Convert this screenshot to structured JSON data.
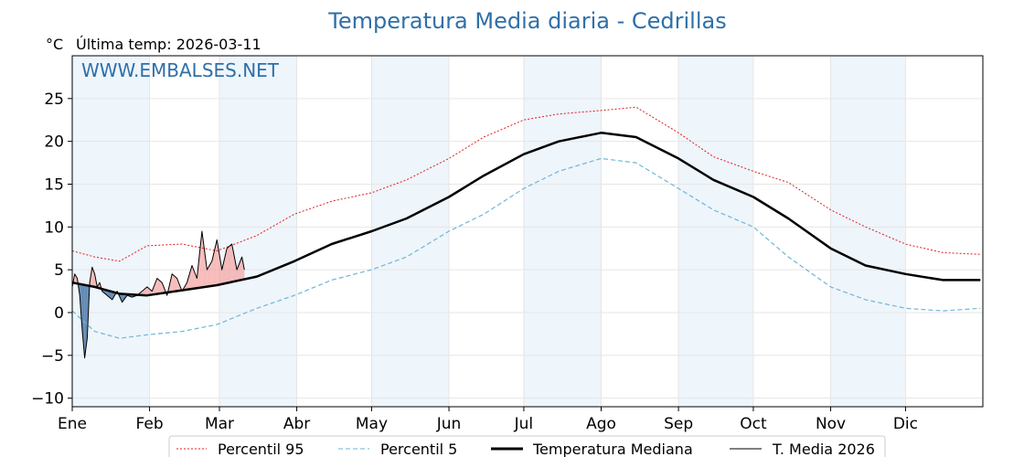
{
  "chart_data": {
    "type": "line",
    "title": "Temperatura Media diaria - Cedrillas",
    "unit_label": "°C",
    "last_temp_label": "Última temp: 2026-03-11",
    "watermark": "WWW.EMBALSES.NET",
    "x_tick_labels": [
      "Ene",
      "Feb",
      "Mar",
      "Abr",
      "May",
      "Jun",
      "Jul",
      "Ago",
      "Sep",
      "Oct",
      "Nov",
      "Dic"
    ],
    "y_ticks": [
      -10,
      -5,
      0,
      5,
      10,
      15,
      20,
      25
    ],
    "ylim": [
      -11,
      30
    ],
    "xlim_days": [
      1,
      366
    ],
    "grid": true,
    "legend_position": "bottom",
    "colors": {
      "p95": "#e41a1c",
      "p5": "#6fb6d6",
      "median": "#000000",
      "current": "#000000",
      "above": "#f4a6a6",
      "below": "#4a78a8",
      "shade": "#eef5fb"
    },
    "series": [
      {
        "name": "Percentil 95",
        "style": "dotted-red",
        "points": [
          [
            1,
            7.2
          ],
          [
            10,
            6.5
          ],
          [
            20,
            6.0
          ],
          [
            31,
            7.8
          ],
          [
            45,
            8.0
          ],
          [
            59,
            7.2
          ],
          [
            75,
            9.0
          ],
          [
            90,
            11.5
          ],
          [
            105,
            13.0
          ],
          [
            121,
            14.0
          ],
          [
            135,
            15.5
          ],
          [
            152,
            18.0
          ],
          [
            166,
            20.5
          ],
          [
            182,
            22.5
          ],
          [
            196,
            23.2
          ],
          [
            213,
            23.6
          ],
          [
            227,
            24.0
          ],
          [
            244,
            21.0
          ],
          [
            258,
            18.2
          ],
          [
            274,
            16.5
          ],
          [
            288,
            15.2
          ],
          [
            305,
            12.0
          ],
          [
            319,
            10.0
          ],
          [
            335,
            8.0
          ],
          [
            350,
            7.0
          ],
          [
            365,
            6.8
          ]
        ]
      },
      {
        "name": "Percentil 5",
        "style": "dashed-lightblue",
        "points": [
          [
            1,
            0.2
          ],
          [
            10,
            -2.2
          ],
          [
            20,
            -3.0
          ],
          [
            31,
            -2.6
          ],
          [
            45,
            -2.2
          ],
          [
            59,
            -1.4
          ],
          [
            75,
            0.5
          ],
          [
            90,
            2.0
          ],
          [
            105,
            3.8
          ],
          [
            121,
            5.0
          ],
          [
            135,
            6.5
          ],
          [
            152,
            9.5
          ],
          [
            166,
            11.5
          ],
          [
            182,
            14.5
          ],
          [
            196,
            16.5
          ],
          [
            213,
            18.0
          ],
          [
            227,
            17.5
          ],
          [
            244,
            14.5
          ],
          [
            258,
            12.0
          ],
          [
            274,
            10.0
          ],
          [
            288,
            6.5
          ],
          [
            305,
            3.0
          ],
          [
            319,
            1.5
          ],
          [
            335,
            0.5
          ],
          [
            350,
            0.2
          ],
          [
            365,
            0.5
          ]
        ]
      },
      {
        "name": "Temperatura Mediana",
        "style": "thick-black",
        "points": [
          [
            1,
            3.5
          ],
          [
            10,
            3.0
          ],
          [
            20,
            2.2
          ],
          [
            31,
            2.0
          ],
          [
            45,
            2.6
          ],
          [
            59,
            3.2
          ],
          [
            75,
            4.2
          ],
          [
            90,
            6.0
          ],
          [
            105,
            8.0
          ],
          [
            121,
            9.5
          ],
          [
            135,
            11.0
          ],
          [
            152,
            13.5
          ],
          [
            166,
            16.0
          ],
          [
            182,
            18.5
          ],
          [
            196,
            20.0
          ],
          [
            213,
            21.0
          ],
          [
            227,
            20.5
          ],
          [
            244,
            18.0
          ],
          [
            258,
            15.5
          ],
          [
            274,
            13.5
          ],
          [
            288,
            11.0
          ],
          [
            305,
            7.5
          ],
          [
            319,
            5.5
          ],
          [
            335,
            4.5
          ],
          [
            350,
            3.8
          ],
          [
            365,
            3.8
          ]
        ]
      },
      {
        "name": "T. Media 2026",
        "style": "thin-black",
        "points": [
          [
            1,
            3.0
          ],
          [
            2,
            4.5
          ],
          [
            3,
            4.0
          ],
          [
            4,
            2.0
          ],
          [
            5,
            -2.0
          ],
          [
            6,
            -5.3
          ],
          [
            7,
            -3.0
          ],
          [
            8,
            3.5
          ],
          [
            9,
            5.3
          ],
          [
            10,
            4.5
          ],
          [
            11,
            3.0
          ],
          [
            12,
            3.5
          ],
          [
            13,
            2.5
          ],
          [
            15,
            2.0
          ],
          [
            17,
            1.5
          ],
          [
            19,
            2.5
          ],
          [
            21,
            1.2
          ],
          [
            23,
            2.0
          ],
          [
            25,
            1.8
          ],
          [
            27,
            2.0
          ],
          [
            29,
            2.5
          ],
          [
            31,
            3.0
          ],
          [
            33,
            2.5
          ],
          [
            35,
            4.0
          ],
          [
            37,
            3.5
          ],
          [
            39,
            2.0
          ],
          [
            41,
            4.5
          ],
          [
            43,
            4.0
          ],
          [
            45,
            2.5
          ],
          [
            47,
            3.5
          ],
          [
            49,
            5.5
          ],
          [
            51,
            4.0
          ],
          [
            53,
            9.5
          ],
          [
            55,
            5.0
          ],
          [
            57,
            6.0
          ],
          [
            59,
            8.5
          ],
          [
            61,
            5.0
          ],
          [
            63,
            7.5
          ],
          [
            65,
            8.0
          ],
          [
            67,
            5.0
          ],
          [
            69,
            6.5
          ],
          [
            70,
            5.0
          ]
        ]
      }
    ],
    "legend": [
      "Percentil 95",
      "Percentil 5",
      "Temperatura Mediana",
      "T. Media 2026"
    ]
  }
}
